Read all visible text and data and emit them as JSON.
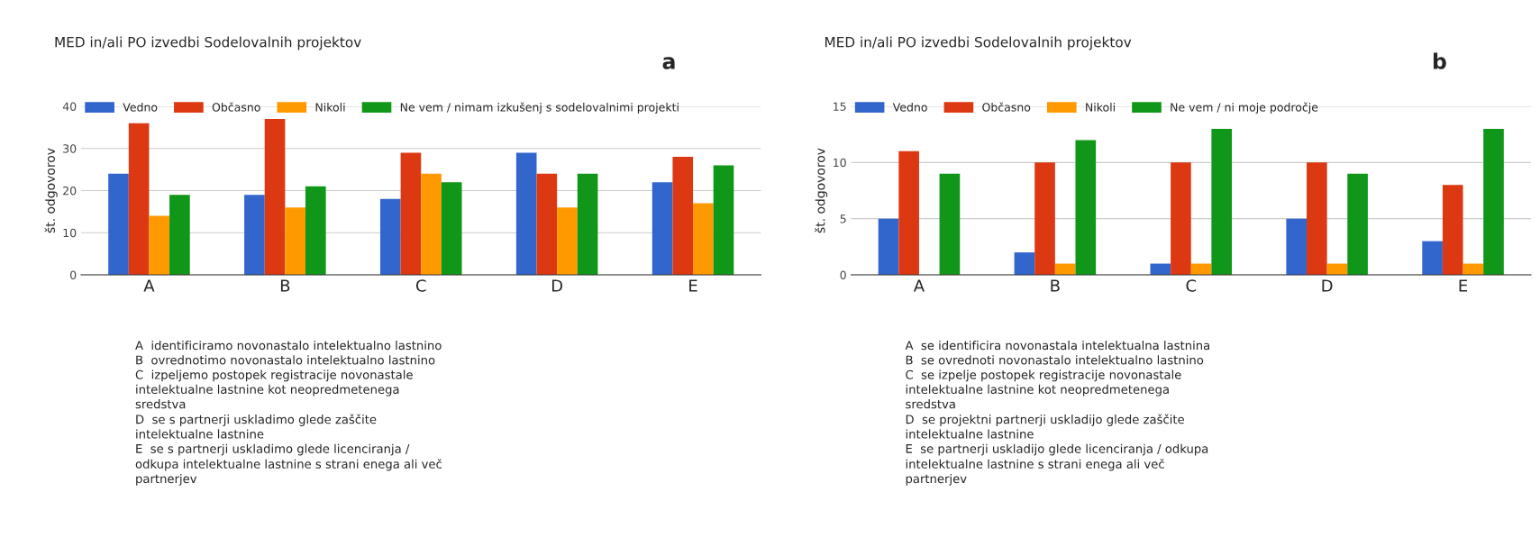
{
  "chart_data": [
    {
      "type": "bar",
      "title": "MED in/ali PO izvedbi Sodelovalnih projektov",
      "ylabel": "št. odgovorov",
      "categories": [
        "A",
        "B",
        "C",
        "D",
        "E"
      ],
      "series": [
        {
          "name": "Vedno",
          "color": "#3366cc",
          "values": [
            24,
            19,
            18,
            29,
            22
          ]
        },
        {
          "name": "Občasno",
          "color": "#dc3912",
          "values": [
            36,
            37,
            29,
            24,
            28
          ]
        },
        {
          "name": "Nikoli",
          "color": "#ff9900",
          "values": [
            14,
            16,
            24,
            16,
            17
          ]
        },
        {
          "name": "Ne vem / nimam izkušenj s sodelovalnimi projekti",
          "color": "#109618",
          "values": [
            19,
            21,
            22,
            24,
            26
          ]
        }
      ],
      "ylim": [
        0,
        40
      ],
      "yticks": [
        0,
        10,
        20,
        30,
        40
      ],
      "grid": "y",
      "legend": "top left",
      "annotations": [
        "a",
        "A  identificiramo novonastalo intelektualno lastnino\nB  ovrednotimo novonastalo intelektualno lastnino\nC  izpeljemo postopek registracije novonastale\nintelektualne lastnine kot neopredmetenega\nsredstva\nD  se s partnerji uskladimo glede zaščite\nintelektualne lastnine\nE  se s partnerji uskladimo glede licenciranja /\nodkupa intelektualne lastnine s strani enega ali več\npartnerjev"
      ]
    },
    {
      "type": "bar",
      "title": "MED in/ali PO izvedbi Sodelovalnih projektov",
      "ylabel": "št. odgovorov",
      "categories": [
        "A",
        "B",
        "C",
        "D",
        "E"
      ],
      "series": [
        {
          "name": "Vedno",
          "color": "#3366cc",
          "values": [
            5,
            2,
            1,
            5,
            3
          ]
        },
        {
          "name": "Občasno",
          "color": "#dc3912",
          "values": [
            11,
            10,
            10,
            10,
            8
          ]
        },
        {
          "name": "Nikoli",
          "color": "#ff9900",
          "values": [
            0,
            1,
            1,
            1,
            1
          ]
        },
        {
          "name": "Ne vem / ni moje področje",
          "color": "#109618",
          "values": [
            9,
            12,
            13,
            9,
            13
          ]
        }
      ],
      "ylim": [
        0,
        15
      ],
      "yticks": [
        0,
        5,
        10,
        15
      ],
      "grid": "y",
      "legend": "top left",
      "annotations": [
        "b",
        "A  se identificira novonastala intelektualna lastnina\nB  se ovrednoti novonastalo intelektualno lastnino\nC  se izpelje postopek registracije novonastale\nintelektualne lastnine kot neopredmetenega\nsredstva\nD  se projektni partnerji uskladijo glede zaščite\nintelektualne lastnine\nE  se partnerji uskladijo glede licenciranja / odkupa\nintelektualne lastnine s strani enega ali več\npartnerjev"
      ]
    }
  ]
}
